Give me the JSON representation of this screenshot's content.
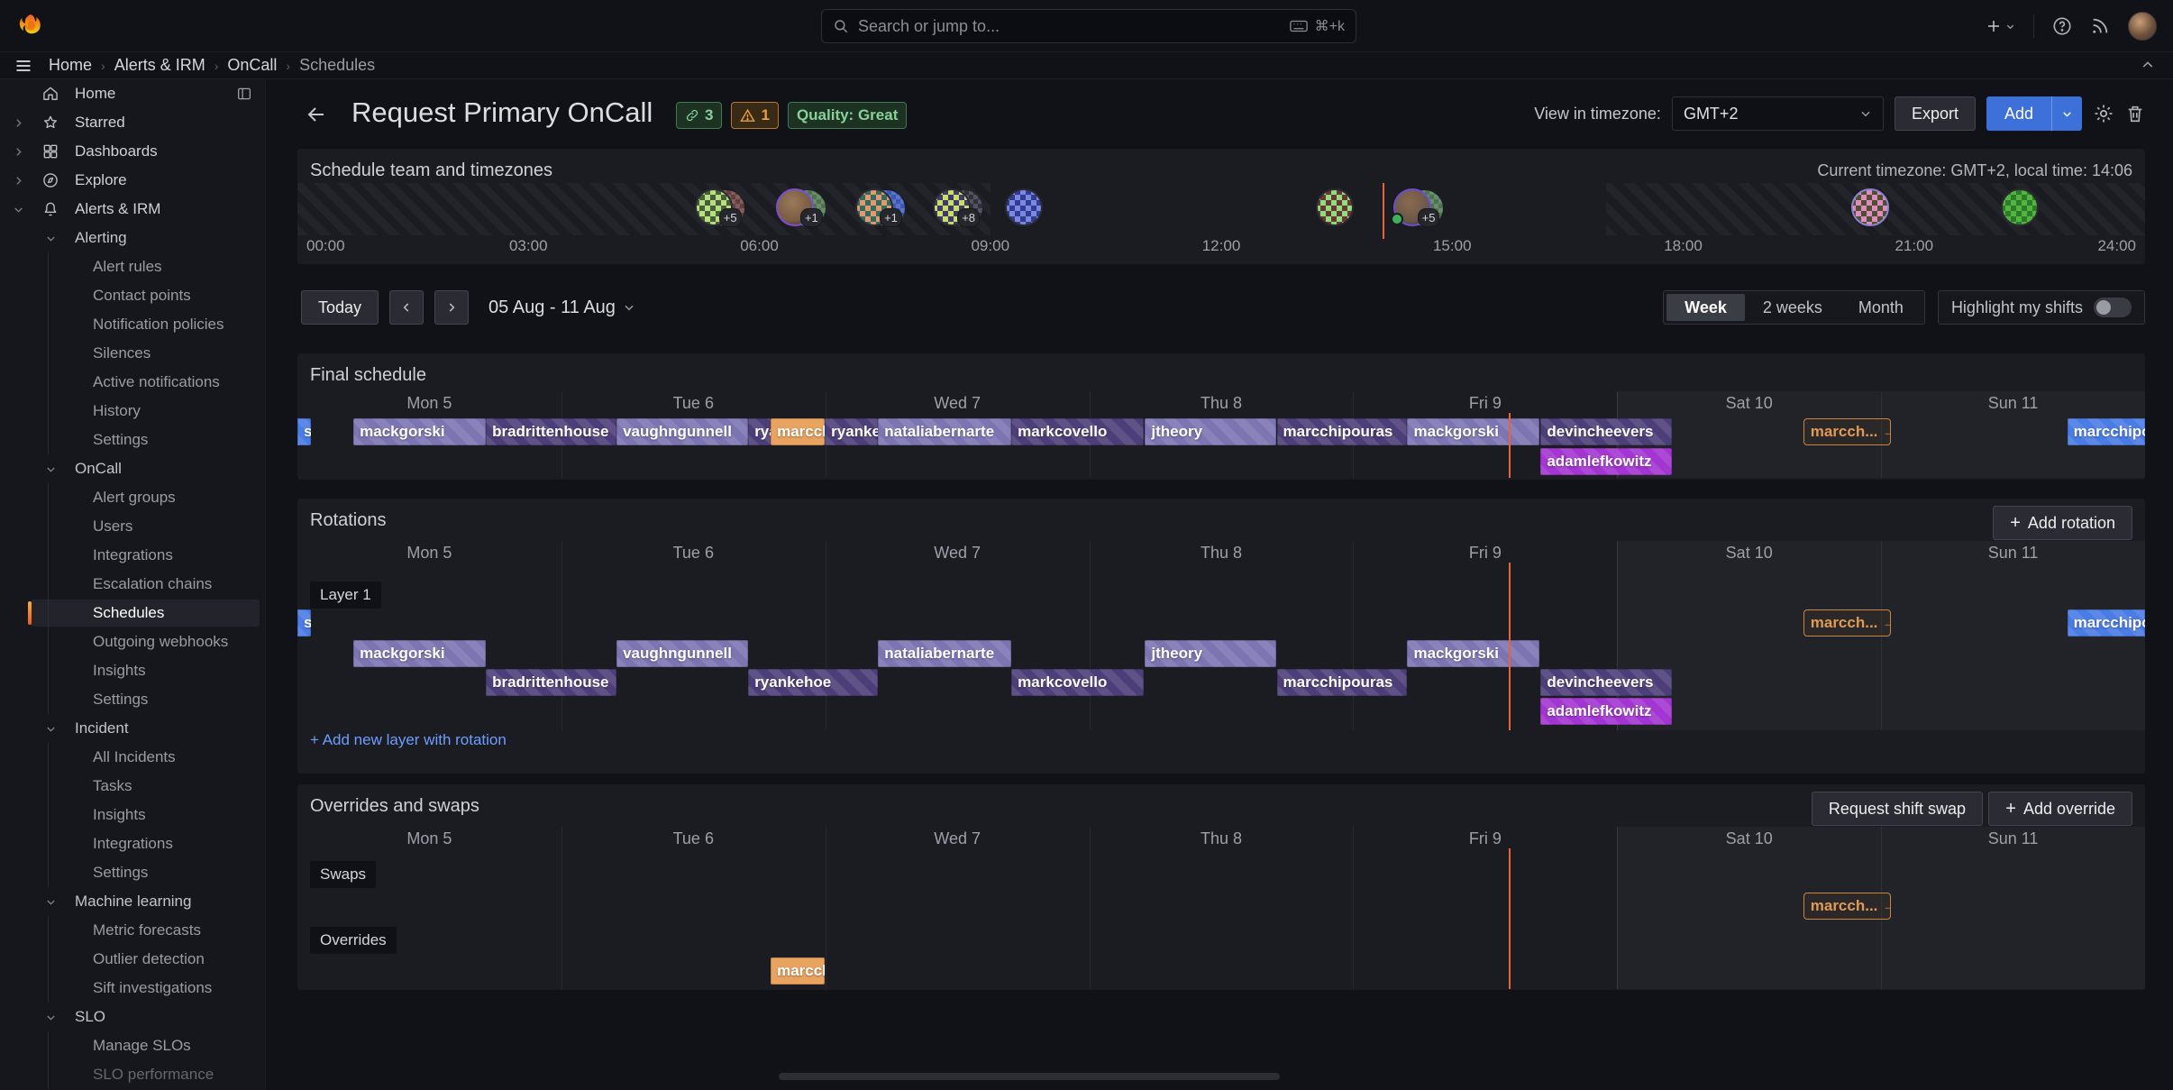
{
  "topbar": {
    "search_placeholder": "Search or jump to...",
    "search_shortcut": "⌘+k"
  },
  "breadcrumb": [
    "Home",
    "Alerts & IRM",
    "OnCall",
    "Schedules"
  ],
  "sidebar": [
    {
      "label": "Home",
      "level": 0,
      "icon": "home-icon",
      "trail": "dock-sidebar-icon"
    },
    {
      "label": "Starred",
      "level": 0,
      "icon": "star-icon",
      "chevron": "right"
    },
    {
      "label": "Dashboards",
      "level": 0,
      "icon": "dashboards-grid-icon",
      "chevron": "right"
    },
    {
      "label": "Explore",
      "level": 0,
      "icon": "compass-icon",
      "chevron": "right"
    },
    {
      "label": "Alerts & IRM",
      "level": 0,
      "icon": "bell-icon",
      "chevron": "down"
    },
    {
      "label": "Alerting",
      "level": 1,
      "chevron": "down"
    },
    {
      "label": "Alert rules",
      "level": 2
    },
    {
      "label": "Contact points",
      "level": 2
    },
    {
      "label": "Notification policies",
      "level": 2
    },
    {
      "label": "Silences",
      "level": 2
    },
    {
      "label": "Active notifications",
      "level": 2
    },
    {
      "label": "History",
      "level": 2
    },
    {
      "label": "Settings",
      "level": 2
    },
    {
      "label": "OnCall",
      "level": 1,
      "chevron": "down"
    },
    {
      "label": "Alert groups",
      "level": 2
    },
    {
      "label": "Users",
      "level": 2
    },
    {
      "label": "Integrations",
      "level": 2
    },
    {
      "label": "Escalation chains",
      "level": 2
    },
    {
      "label": "Schedules",
      "level": 2,
      "active": true
    },
    {
      "label": "Outgoing webhooks",
      "level": 2
    },
    {
      "label": "Insights",
      "level": 2
    },
    {
      "label": "Settings",
      "level": 2
    },
    {
      "label": "Incident",
      "level": 1,
      "chevron": "down"
    },
    {
      "label": "All Incidents",
      "level": 2
    },
    {
      "label": "Tasks",
      "level": 2
    },
    {
      "label": "Insights",
      "level": 2
    },
    {
      "label": "Integrations",
      "level": 2
    },
    {
      "label": "Settings",
      "level": 2
    },
    {
      "label": "Machine learning",
      "level": 1,
      "chevron": "down"
    },
    {
      "label": "Metric forecasts",
      "level": 2
    },
    {
      "label": "Outlier detection",
      "level": 2
    },
    {
      "label": "Sift investigations",
      "level": 2
    },
    {
      "label": "SLO",
      "level": 1,
      "chevron": "down"
    },
    {
      "label": "Manage SLOs",
      "level": 2
    },
    {
      "label": "SLO performance",
      "level": 2,
      "dim": true
    }
  ],
  "header": {
    "title": "Request Primary OnCall",
    "links_badge": "3",
    "warnings_badge": "1",
    "quality_badge": "Quality: Great",
    "timezone_label": "View in timezone:",
    "timezone_value": "GMT+2",
    "export_button": "Export",
    "add_button": "Add"
  },
  "team_panel": {
    "title": "Schedule team and timezones",
    "timezone_note": "Current timezone: GMT+2, local time: 14:06",
    "hours": [
      "00:00",
      "03:00",
      "06:00",
      "09:00",
      "12:00",
      "15:00",
      "18:00",
      "21:00",
      "24:00"
    ],
    "now_pct": 58.75,
    "offhours_pct": [
      [
        0,
        37.5
      ],
      [
        70.83,
        100
      ]
    ],
    "avatars": [
      {
        "pct": 21.5,
        "badge": "+5",
        "base": "#4a5d3a",
        "accent": "#b5e07d",
        "second": "#6b3f3f"
      },
      {
        "pct": 25.9,
        "badge": "+1",
        "base": "#7a5c42",
        "accent": "#9a7a5a",
        "second": "#4f7a4f",
        "ring": "#7a4fd0",
        "photo": true
      },
      {
        "pct": 30.2,
        "badge": "+1",
        "base": "#35695c",
        "accent": "#e09a70",
        "second": "#3d5bbf"
      },
      {
        "pct": 34.4,
        "badge": "+8",
        "base": "#453763",
        "accent": "#c3e06d",
        "second": "#30323f"
      },
      {
        "pct": 38.3,
        "base": "#2e3d8f",
        "accent": "#7d86e0"
      },
      {
        "pct": 55.1,
        "base": "#6e3333",
        "accent": "#8ae07d"
      },
      {
        "pct": 59.3,
        "badge": "+5",
        "base": "#6b584a",
        "accent": "#8a6a4f",
        "second": "#4f7a52",
        "ring": "#6a4fd0",
        "photo": true,
        "online": true
      },
      {
        "pct": 84.1,
        "base": "#4d502f",
        "accent": "#e08ac2",
        "ring": "#8a82d0"
      },
      {
        "pct": 92.2,
        "base": "#52b53f",
        "accent": "#2e7a2b"
      }
    ]
  },
  "toolbar": {
    "today_button": "Today",
    "date_range": "05 Aug - 11 Aug",
    "views": [
      "Week",
      "2 weeks",
      "Month"
    ],
    "active_view": "Week",
    "highlight_label": "Highlight my shifts",
    "highlight_on": false
  },
  "days": [
    "Mon 5",
    "Tue 6",
    "Wed 7",
    "Thu 8",
    "Fri 9",
    "Sat 10",
    "Sun 11"
  ],
  "now_day_pct": 65.54,
  "final_panel": {
    "title": "Final schedule",
    "bars": [
      {
        "label": "s",
        "start": 0,
        "end": 0.05,
        "kind": "blue",
        "row": 0
      },
      {
        "label": "mackgorski",
        "start": 0.212,
        "end": 0.714,
        "kind": "light",
        "row": 0
      },
      {
        "label": "bradrittenhouse",
        "start": 0.714,
        "end": 1.209,
        "kind": "dark",
        "row": 0
      },
      {
        "label": "vaughngunnell",
        "start": 1.209,
        "end": 1.708,
        "kind": "light",
        "row": 0
      },
      {
        "label": "ryankehoe",
        "start": 1.708,
        "end": 1.793,
        "kind": "dark",
        "row": 0
      },
      {
        "label": "marcchipouras",
        "start": 1.793,
        "end": 1.998,
        "kind": "orange",
        "row": 0
      },
      {
        "label": "ryankehoe",
        "start": 1.998,
        "end": 2.2,
        "kind": "dark",
        "row": 0
      },
      {
        "label": "nataliabernarte",
        "start": 2.2,
        "end": 2.705,
        "kind": "light",
        "row": 0
      },
      {
        "label": "markcovello",
        "start": 2.705,
        "end": 3.208,
        "kind": "dark",
        "row": 0
      },
      {
        "label": "jtheory",
        "start": 3.211,
        "end": 3.71,
        "kind": "light",
        "row": 0
      },
      {
        "label": "marcchipouras",
        "start": 3.71,
        "end": 4.205,
        "kind": "dark",
        "row": 0
      },
      {
        "label": "mackgorski",
        "start": 4.205,
        "end": 4.707,
        "kind": "light",
        "row": 0
      },
      {
        "label": "devincheevers",
        "start": 4.71,
        "end": 5.206,
        "kind": "dark",
        "row": 0
      },
      {
        "label": "marcch... → ?",
        "start": 5.705,
        "end": 6.036,
        "kind": "swap",
        "row": 0
      },
      {
        "label": "marcchipouras",
        "start": 6.705,
        "end": 7,
        "kind": "blue",
        "row": 0
      },
      {
        "label": "adamlefkowitz",
        "start": 4.71,
        "end": 5.206,
        "kind": "magenta",
        "row": 1
      }
    ]
  },
  "rotations_panel": {
    "title": "Rotations",
    "add_button": "Add rotation",
    "layer_label": "Layer 1",
    "add_layer_link": "+ Add new layer with rotation",
    "bars": [
      {
        "label": "s",
        "start": 0,
        "end": 0.05,
        "kind": "blue",
        "row": 0
      },
      {
        "label": "marcch... → ?",
        "start": 5.705,
        "end": 6.036,
        "kind": "swap",
        "row": 0
      },
      {
        "label": "marcchipouras",
        "start": 6.705,
        "end": 7,
        "kind": "blue",
        "row": 0
      },
      {
        "label": "mackgorski",
        "start": 0.212,
        "end": 0.714,
        "kind": "light",
        "row": 1
      },
      {
        "label": "vaughngunnell",
        "start": 1.209,
        "end": 1.708,
        "kind": "light",
        "row": 1
      },
      {
        "label": "nataliabernarte",
        "start": 2.2,
        "end": 2.705,
        "kind": "light",
        "row": 1
      },
      {
        "label": "jtheory",
        "start": 3.211,
        "end": 3.71,
        "kind": "light",
        "row": 1
      },
      {
        "label": "mackgorski",
        "start": 4.205,
        "end": 4.707,
        "kind": "light",
        "row": 1
      },
      {
        "label": "bradrittenhouse",
        "start": 0.714,
        "end": 1.209,
        "kind": "dark",
        "row": 2
      },
      {
        "label": "ryankehoe",
        "start": 1.708,
        "end": 2.2,
        "kind": "dark",
        "row": 2
      },
      {
        "label": "markcovello",
        "start": 2.705,
        "end": 3.208,
        "kind": "dark",
        "row": 2
      },
      {
        "label": "marcchipouras",
        "start": 3.71,
        "end": 4.205,
        "kind": "dark",
        "row": 2
      },
      {
        "label": "devincheevers",
        "start": 4.71,
        "end": 5.206,
        "kind": "dark",
        "row": 2
      },
      {
        "label": "adamlefkowitz",
        "start": 4.71,
        "end": 5.206,
        "kind": "magenta",
        "row": 3
      }
    ]
  },
  "overrides_panel": {
    "title": "Overrides and swaps",
    "request_swap_button": "Request shift swap",
    "add_override_button": "Add override",
    "swaps_label": "Swaps",
    "overrides_label": "Overrides",
    "bars": [
      {
        "label": "marcch... → ?",
        "start": 5.705,
        "end": 6.036,
        "kind": "swap",
        "row": 0
      },
      {
        "label": "marcchipouras",
        "start": 1.793,
        "end": 1.998,
        "kind": "orange",
        "row": 1
      }
    ]
  },
  "colors": {
    "accent_orange": "#f2581a",
    "primary_blue": "#3d71d9",
    "bar_light_purple": "#7d74b2",
    "bar_dark_purple": "#4c3e79",
    "bar_magenta": "#a335d2",
    "bar_override_orange": "#e8a361",
    "bar_blue": "#4a7ce6",
    "now_line": "#e8623a",
    "link_blue": "#6d9eff",
    "success_green": "#86d29a",
    "warning_orange": "#e9a13c"
  }
}
